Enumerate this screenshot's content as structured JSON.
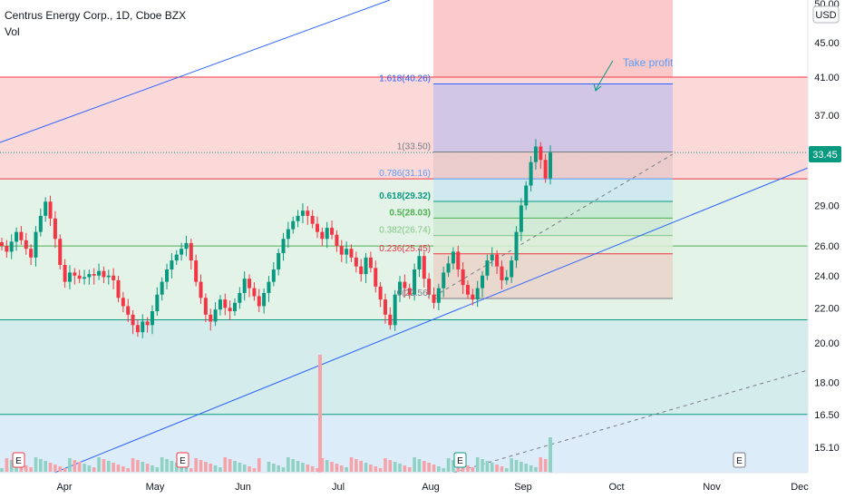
{
  "header": {
    "symbol_line": "Centrus Energy Corp., 1D, Cboe BZX",
    "volume_label": "Vol"
  },
  "currency": "USD",
  "current_price": "33.45",
  "annotation": "Take profit",
  "price_axis": {
    "ticks": [
      "50.00",
      "45.00",
      "41.00",
      "37.00",
      "33.00",
      "29.00",
      "26.00",
      "24.00",
      "22.00",
      "20.00",
      "18.00",
      "16.50",
      "15.10"
    ]
  },
  "time_axis": {
    "labels": [
      "Apr",
      "May",
      "Jun",
      "Jul",
      "Aug",
      "Sep",
      "Oct",
      "Nov",
      "Dec"
    ]
  },
  "fib_levels": [
    {
      "label": "1.618(40.26)",
      "color": "#2962ff"
    },
    {
      "label": "1(33.50)",
      "color": "#787b86"
    },
    {
      "label": "0.786(31.16)",
      "color": "#5b9cf6"
    },
    {
      "label": "0.618(29.32)",
      "color": "#089981"
    },
    {
      "label": "0.5(28.03)",
      "color": "#4caf50"
    },
    {
      "label": "0.382(26.74)",
      "color": "#81c784"
    },
    {
      "label": "0.236(25.45)",
      "color": "#f23645"
    },
    {
      "label": "0(22.56)",
      "color": "#787b86"
    }
  ],
  "earnings_markers": [
    "E",
    "E",
    "E",
    "E"
  ],
  "colors": {
    "up": "#089981",
    "down": "#f23645",
    "trend": "#2962ff",
    "zone_red": "#fcd9d9",
    "zone_green": "#e4f3e7",
    "zone_blue": "#dcecf9"
  },
  "chart_data": {
    "type": "candlestick",
    "title": "Centrus Energy Corp., 1D, Cboe BZX",
    "ylabel": "USD",
    "scale": "log",
    "ylim": [
      15.1,
      50.0
    ],
    "x_ticks": [
      "Apr",
      "May",
      "Jun",
      "Jul",
      "Aug",
      "Sep",
      "Oct",
      "Nov",
      "Dec"
    ],
    "ohlc_close_approx": [
      26.0,
      25.6,
      26.3,
      27.0,
      26.4,
      25.8,
      25.2,
      27.0,
      28.2,
      29.3,
      28.0,
      26.5,
      24.7,
      23.6,
      24.2,
      24.0,
      23.8,
      23.9,
      24.1,
      24.0,
      24.3,
      23.9,
      24.0,
      23.7,
      22.6,
      22.1,
      21.6,
      21.0,
      20.6,
      21.2,
      21.0,
      21.8,
      22.8,
      23.6,
      24.4,
      25.0,
      25.4,
      25.8,
      26.2,
      25.0,
      23.6,
      22.6,
      21.6,
      21.2,
      21.9,
      22.5,
      22.0,
      21.8,
      22.3,
      22.9,
      23.8,
      23.2,
      22.7,
      22.1,
      22.9,
      23.6,
      24.4,
      25.5,
      26.5,
      27.2,
      27.8,
      28.2,
      28.6,
      28.2,
      27.6,
      27.0,
      26.5,
      27.3,
      26.8,
      26.0,
      25.4,
      25.8,
      25.2,
      24.6,
      24.1,
      25.2,
      24.5,
      23.3,
      22.5,
      21.6,
      21.0,
      22.8,
      23.6,
      23.2,
      22.8,
      24.4,
      25.3,
      23.8,
      22.8,
      22.3,
      23.2,
      24.2,
      24.8,
      25.6,
      24.4,
      23.4,
      22.8,
      22.5,
      23.2,
      24.0,
      25.0,
      25.4,
      24.6,
      23.7,
      23.9,
      25.0,
      27.0,
      29.0,
      30.6,
      32.6,
      34.0,
      32.8,
      31.2,
      33.45
    ],
    "volume_spike_month": "Jul",
    "horizontal_levels": [
      41.0,
      31.16,
      26.0,
      21.3,
      16.5
    ],
    "fibonacci": {
      "0": 22.56,
      "0.236": 25.45,
      "0.382": 26.74,
      "0.5": 28.03,
      "0.618": 29.32,
      "0.786": 31.16,
      "1": 33.5,
      "1.618": 40.26
    },
    "grid": false
  }
}
